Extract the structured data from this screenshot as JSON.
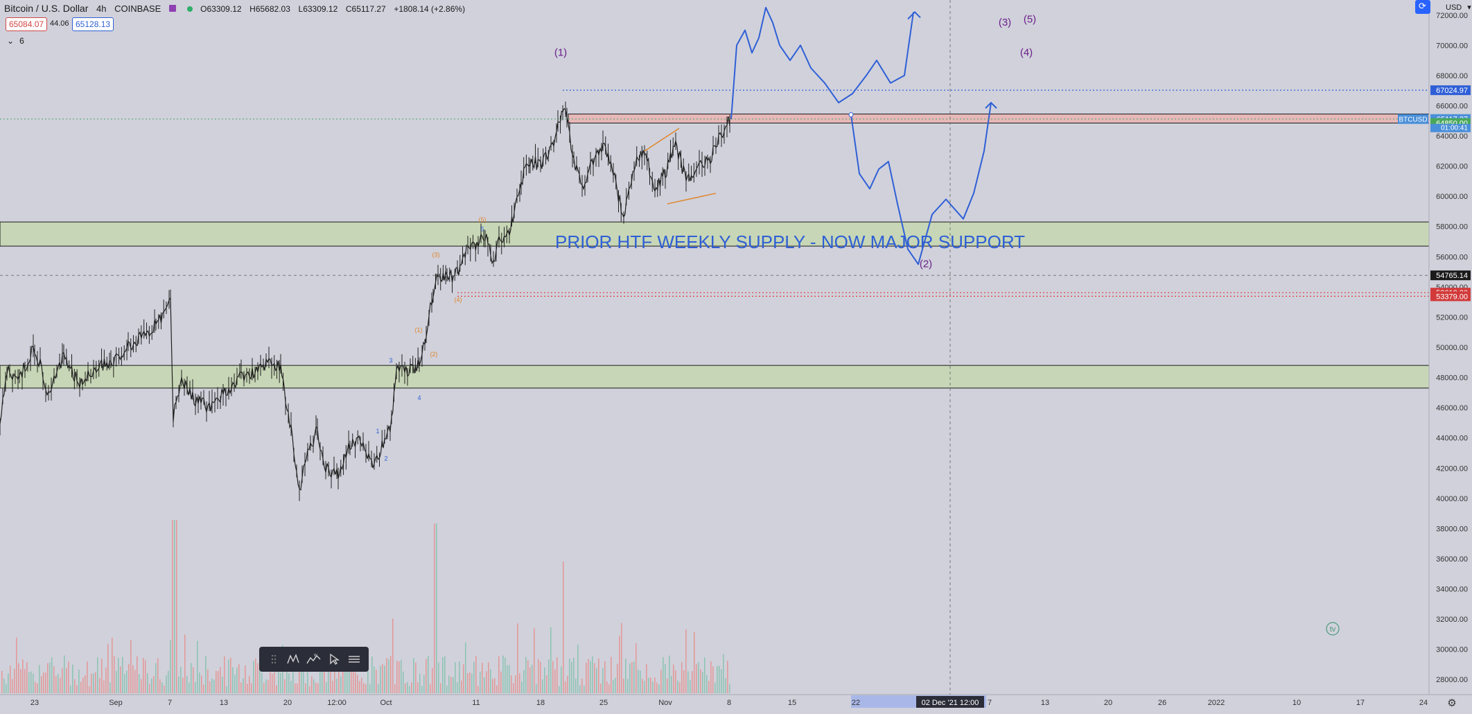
{
  "header": {
    "symbol": "Bitcoin / U.S. Dollar",
    "interval": "4h",
    "exchange": "COINBASE",
    "open": "O63309.12",
    "high": "H65682.03",
    "low": "L63309.12",
    "close": "C65117.27",
    "change": "+1808.14 (+2.86%)",
    "sell_price": "65084.07",
    "spread": "44.06",
    "buy_price": "65128.13",
    "indicator_count": "6",
    "currency": "USD"
  },
  "colors": {
    "background": "#d0d1db",
    "up_candle": "#1f1f1f",
    "volume_up": "#8fc4b4",
    "volume_down": "#e39a9a",
    "drawing_blue": "#2f5fd6",
    "wave_purple": "#6b1f8a",
    "wave_orange": "#e0862b",
    "zone_green": "#c7d6b6",
    "zone_red": "#e6b8b8"
  },
  "chart_data": {
    "type": "line",
    "title": "",
    "symbol": "BTCUSD",
    "ylim": [
      27000,
      73000
    ],
    "y_ticks": [
      "72000.00",
      "70000.00",
      "68000.00",
      "66000.00",
      "64000.00",
      "62000.00",
      "60000.00",
      "58000.00",
      "56000.00",
      "54000.00",
      "52000.00",
      "50000.00",
      "48000.00",
      "46000.00",
      "44000.00",
      "42000.00",
      "40000.00",
      "38000.00",
      "36000.00",
      "34000.00",
      "32000.00",
      "30000.00",
      "28000.00"
    ],
    "x_ticks": [
      "23",
      "Sep",
      "7",
      "13",
      "20",
      "12:00",
      "Oct",
      "11",
      "18",
      "25",
      "Nov",
      "8",
      "15",
      "22",
      "7",
      "13",
      "20",
      "26",
      "2022",
      "10",
      "17",
      "24"
    ],
    "crosshair_x_label": "02 Dec '21   12:00",
    "price_path": [
      [
        0,
        45000
      ],
      [
        10,
        48500
      ],
      [
        28,
        48000
      ],
      [
        50,
        50000
      ],
      [
        70,
        47000
      ],
      [
        92,
        49500
      ],
      [
        115,
        47500
      ],
      [
        135,
        48500
      ],
      [
        160,
        49000
      ],
      [
        185,
        50000
      ],
      [
        200,
        50500
      ],
      [
        225,
        51500
      ],
      [
        240,
        52500
      ],
      [
        246,
        53000
      ],
      [
        250,
        45500
      ],
      [
        262,
        48000
      ],
      [
        282,
        46500
      ],
      [
        302,
        46000
      ],
      [
        322,
        47000
      ],
      [
        348,
        48000
      ],
      [
        372,
        48500
      ],
      [
        392,
        49200
      ],
      [
        405,
        48500
      ],
      [
        412,
        46500
      ],
      [
        420,
        44500
      ],
      [
        432,
        40500
      ],
      [
        444,
        43000
      ],
      [
        458,
        44500
      ],
      [
        470,
        42000
      ],
      [
        488,
        41500
      ],
      [
        505,
        43500
      ],
      [
        520,
        44000
      ],
      [
        540,
        42000
      ],
      [
        555,
        44000
      ],
      [
        565,
        45000
      ],
      [
        572,
        48500
      ],
      [
        592,
        48500
      ],
      [
        605,
        49000
      ],
      [
        615,
        51000
      ],
      [
        625,
        53500
      ],
      [
        632,
        55000
      ],
      [
        645,
        54500
      ],
      [
        660,
        55000
      ],
      [
        675,
        56500
      ],
      [
        690,
        57000
      ],
      [
        700,
        57500
      ],
      [
        712,
        55500
      ],
      [
        720,
        57000
      ],
      [
        735,
        57500
      ],
      [
        742,
        59000
      ],
      [
        752,
        61000
      ],
      [
        765,
        62500
      ],
      [
        780,
        62000
      ],
      [
        795,
        63000
      ],
      [
        805,
        64500
      ],
      [
        812,
        66000
      ],
      [
        818,
        65000
      ],
      [
        828,
        62500
      ],
      [
        840,
        60500
      ],
      [
        852,
        62000
      ],
      [
        870,
        63500
      ],
      [
        885,
        61500
      ],
      [
        900,
        58500
      ],
      [
        915,
        62000
      ],
      [
        930,
        63000
      ],
      [
        945,
        60500
      ],
      [
        960,
        61500
      ],
      [
        975,
        63500
      ],
      [
        990,
        61000
      ],
      [
        1005,
        62000
      ],
      [
        1025,
        62500
      ],
      [
        1045,
        64500
      ],
      [
        1055,
        65100
      ]
    ],
    "projection_scenarios": [
      {
        "name": "up-path",
        "points": [
          [
            1055,
            65100
          ],
          [
            1063,
            70000
          ],
          [
            1075,
            71000
          ],
          [
            1085,
            69500
          ],
          [
            1095,
            70500
          ],
          [
            1105,
            72500
          ],
          [
            1115,
            71500
          ],
          [
            1125,
            70000
          ],
          [
            1140,
            69000
          ],
          [
            1155,
            70000
          ],
          [
            1170,
            68500
          ],
          [
            1190,
            67500
          ],
          [
            1210,
            66200
          ],
          [
            1230,
            66800
          ],
          [
            1250,
            68000
          ],
          [
            1265,
            69000
          ],
          [
            1285,
            67500
          ],
          [
            1305,
            68000
          ],
          [
            1318,
            72200
          ]
        ]
      },
      {
        "name": "down-path",
        "points": [
          [
            1228,
            65400
          ],
          [
            1240,
            61500
          ],
          [
            1255,
            60500
          ],
          [
            1268,
            61800
          ],
          [
            1282,
            62300
          ],
          [
            1295,
            59500
          ],
          [
            1310,
            56500
          ],
          [
            1325,
            55500
          ],
          [
            1345,
            58800
          ],
          [
            1365,
            59800
          ],
          [
            1390,
            58500
          ],
          [
            1405,
            60200
          ],
          [
            1420,
            63000
          ],
          [
            1430,
            66200
          ]
        ]
      }
    ],
    "levels": {
      "high_dotted": 67024.97,
      "current": 65117.27,
      "support_green": 64850.0,
      "crosshair": 54765.14,
      "red_dotted_1": 53618.3,
      "red_dotted_2": 53379.0
    },
    "price_labels": [
      "67024.97",
      "65117.27",
      "01:00:41",
      "64850.00",
      "54765.14",
      "53618.30",
      "53379.00"
    ],
    "zones": [
      {
        "name": "weekly-supply-support",
        "from": 56700,
        "to": 58300
      },
      {
        "name": "lower-support",
        "from": 47300,
        "to": 48800
      },
      {
        "name": "resistance-band",
        "from": 64850,
        "to": 65450
      }
    ],
    "annotation": "PRIOR HTF WEEKLY SUPPLY -  NOW MAJOR SUPPORT",
    "wave_labels_purple": [
      "(1)",
      "(2)",
      "(3)",
      "(4)",
      "(5)"
    ],
    "wave_labels_orange": [
      "(1)",
      "(2)",
      "(3)",
      "(4)",
      "(5)"
    ],
    "wave_labels_blue": [
      "1",
      "2",
      "3",
      "4",
      "5"
    ]
  },
  "toolbar": {
    "items": [
      "grip-icon",
      "elliott-wave-icon",
      "wave-pattern-icon",
      "cursor-icon",
      "settings-icon"
    ]
  },
  "watermark": "tv"
}
